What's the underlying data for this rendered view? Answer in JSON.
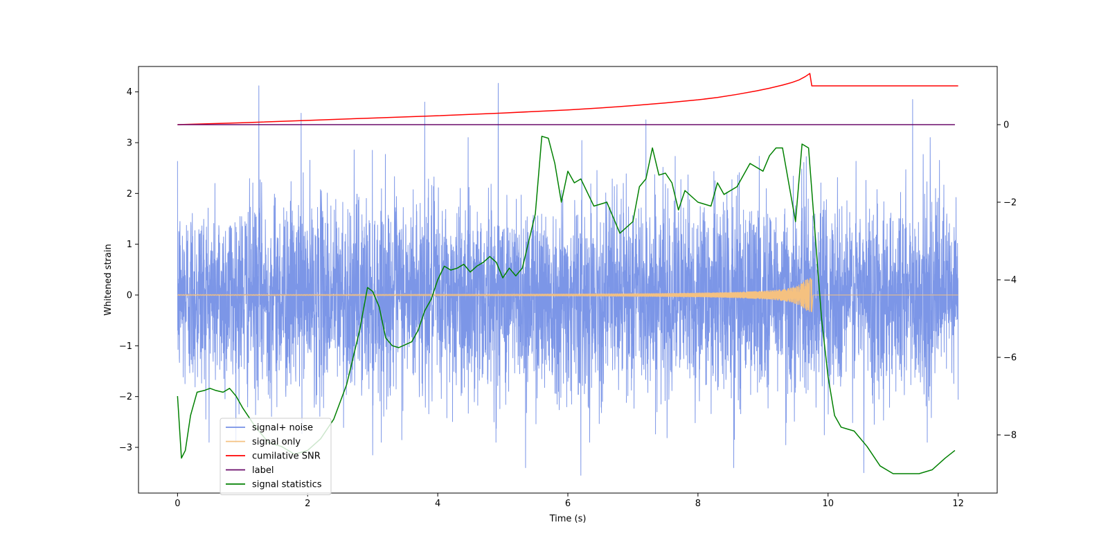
{
  "chart_data": {
    "type": "line",
    "title": "",
    "xlabel": "Time (s)",
    "ylabel_left": "Whitened strain",
    "ylabel_right": "",
    "xlim": [
      -0.6,
      12.6
    ],
    "ylim_left": [
      -3.9,
      4.5
    ],
    "ylim_right": [
      -9.5,
      1.5
    ],
    "xticks": [
      0,
      2,
      4,
      6,
      8,
      10,
      12
    ],
    "yticks_left": [
      -3,
      -2,
      -1,
      0,
      1,
      2,
      3,
      4
    ],
    "yticks_right": [
      -8,
      -6,
      -4,
      -2,
      0
    ],
    "legend_position": "lower-left",
    "series": [
      {
        "name": "signal+ noise",
        "color": "#7590e6",
        "axis": "left",
        "kind": "noise",
        "x_range": [
          0,
          12
        ],
        "std": 0.95,
        "peaks": [
          [
            1.25,
            4.12
          ],
          [
            1.9,
            3.58
          ],
          [
            3.8,
            3.8
          ],
          [
            4.93,
            4.17
          ],
          [
            7.2,
            3.45
          ],
          [
            11.3,
            3.85
          ],
          [
            6.2,
            -3.55
          ],
          [
            5.35,
            -3.4
          ],
          [
            8.55,
            -3.4
          ],
          [
            10.55,
            -3.5
          ],
          [
            3.0,
            -3.15
          ],
          [
            9.35,
            -2.95
          ]
        ]
      },
      {
        "name": "signal only",
        "color": "#f5c180",
        "axis": "left",
        "kind": "chirp",
        "x_range": [
          0,
          12
        ],
        "merger_time": 9.75,
        "peak_amplitude": 0.33
      },
      {
        "name": "cumilative SNR",
        "color": "#ff0000",
        "axis": "right",
        "x": [
          0,
          1,
          2,
          3,
          4,
          5,
          6,
          6.5,
          7,
          7.5,
          8,
          8.3,
          8.6,
          8.9,
          9.1,
          9.3,
          9.45,
          9.55,
          9.65,
          9.72,
          9.75,
          10,
          11,
          12
        ],
        "y": [
          0.0,
          0.05,
          0.11,
          0.17,
          0.23,
          0.3,
          0.38,
          0.43,
          0.49,
          0.56,
          0.64,
          0.7,
          0.78,
          0.87,
          0.94,
          1.02,
          1.09,
          1.15,
          1.24,
          1.32,
          1.0,
          1.0,
          1.0,
          1.0
        ]
      },
      {
        "name": "label",
        "color": "#6a0a6a",
        "axis": "right",
        "x": [
          0,
          11.95
        ],
        "y": [
          0,
          0
        ]
      },
      {
        "name": "signal statistics",
        "color": "#008000",
        "axis": "right",
        "x": [
          0,
          0.06,
          0.12,
          0.2,
          0.3,
          0.42,
          0.5,
          0.58,
          0.7,
          0.8,
          0.9,
          1.0,
          1.2,
          1.4,
          1.6,
          1.8,
          2.0,
          2.2,
          2.4,
          2.6,
          2.8,
          2.92,
          3.0,
          3.1,
          3.2,
          3.3,
          3.4,
          3.6,
          3.7,
          3.8,
          3.9,
          4.0,
          4.1,
          4.2,
          4.3,
          4.4,
          4.5,
          4.6,
          4.7,
          4.8,
          4.9,
          5.0,
          5.1,
          5.2,
          5.3,
          5.4,
          5.5,
          5.6,
          5.7,
          5.8,
          5.9,
          6.0,
          6.1,
          6.2,
          6.4,
          6.6,
          6.8,
          7.0,
          7.1,
          7.2,
          7.3,
          7.4,
          7.5,
          7.6,
          7.7,
          7.8,
          8.0,
          8.2,
          8.3,
          8.4,
          8.6,
          8.8,
          9.0,
          9.1,
          9.2,
          9.3,
          9.5,
          9.6,
          9.7,
          9.8,
          9.9,
          10.0,
          10.1,
          10.2,
          10.3,
          10.4,
          10.6,
          10.8,
          11.0,
          11.2,
          11.4,
          11.6,
          11.8,
          11.95
        ],
        "y": [
          -7.0,
          -8.6,
          -8.4,
          -7.5,
          -6.9,
          -6.85,
          -6.8,
          -6.85,
          -6.9,
          -6.8,
          -7.0,
          -7.3,
          -7.8,
          -8.2,
          -8.3,
          -8.5,
          -8.4,
          -8.1,
          -7.6,
          -6.7,
          -5.3,
          -4.2,
          -4.3,
          -4.7,
          -5.5,
          -5.7,
          -5.75,
          -5.6,
          -5.3,
          -4.8,
          -4.5,
          -4.0,
          -3.65,
          -3.75,
          -3.7,
          -3.6,
          -3.8,
          -3.65,
          -3.55,
          -3.4,
          -3.55,
          -3.95,
          -3.7,
          -3.9,
          -3.7,
          -3.0,
          -2.3,
          -0.3,
          -0.35,
          -1.0,
          -2.0,
          -1.2,
          -1.5,
          -1.4,
          -2.1,
          -2.0,
          -2.8,
          -2.5,
          -1.6,
          -1.4,
          -0.6,
          -1.3,
          -1.25,
          -1.5,
          -2.2,
          -1.7,
          -2.0,
          -2.1,
          -1.5,
          -1.8,
          -1.6,
          -1.0,
          -1.2,
          -0.8,
          -0.6,
          -0.6,
          -2.5,
          -0.5,
          -0.6,
          -2.8,
          -5.0,
          -6.5,
          -7.5,
          -7.8,
          -7.85,
          -7.9,
          -8.3,
          -8.8,
          -9.0,
          -9.0,
          -9.0,
          -8.9,
          -8.6,
          -8.4
        ]
      }
    ]
  }
}
